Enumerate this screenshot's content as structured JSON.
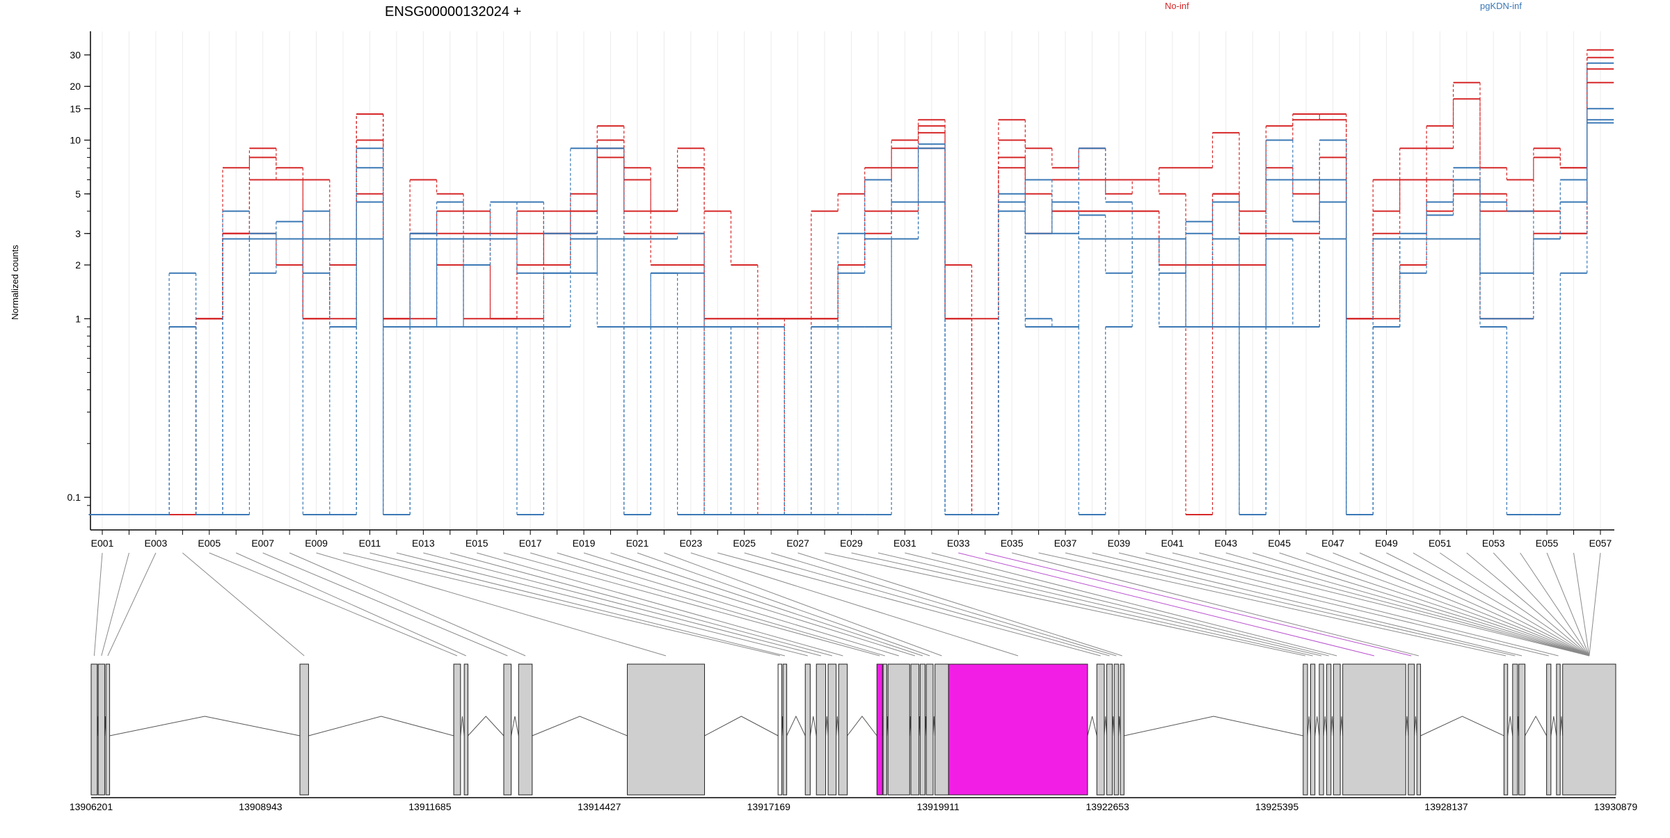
{
  "chart_data": {
    "type": "line",
    "title": "ENSG00000132024 +",
    "ylabel": "Normalized counts",
    "y_scale": "log",
    "ylim": [
      0.08,
      34
    ],
    "y_ticks": [
      0.1,
      1,
      2,
      3,
      5,
      10,
      15,
      20,
      30
    ],
    "y_tick_labels": [
      "0.1",
      "1",
      "2",
      "3",
      "5",
      "10",
      "15",
      "20",
      "30"
    ],
    "grid": "vertical, light",
    "legend": [
      {
        "name": "No-inf",
        "color": "#d62728",
        "position": "top-center"
      },
      {
        "name": "pgKDN-inf",
        "color": "#3a78b5",
        "position": "top-right"
      }
    ],
    "exons": [
      "E001",
      "E002",
      "E003",
      "E004",
      "E005",
      "E006",
      "E007",
      "E008",
      "E009",
      "E010",
      "E011",
      "E012",
      "E013",
      "E014",
      "E015",
      "E016",
      "E017",
      "E018",
      "E019",
      "E020",
      "E021",
      "E022",
      "E023",
      "E024",
      "E025",
      "E026",
      "E027",
      "E028",
      "E029",
      "E030",
      "E031",
      "E032",
      "E033",
      "E034",
      "E035",
      "E036",
      "E037",
      "E038",
      "E039",
      "E040",
      "E041",
      "E042",
      "E043",
      "E044",
      "E045",
      "E046",
      "E047",
      "E048",
      "E049",
      "E050",
      "E051",
      "E052",
      "E053",
      "E054",
      "E055",
      "E056",
      "E057"
    ],
    "x_tick_labels": [
      "E001",
      "E003",
      "E005",
      "E007",
      "E009",
      "E011",
      "E013",
      "E015",
      "E017",
      "E019",
      "E021",
      "E023",
      "E025",
      "E027",
      "E029",
      "E031",
      "E033",
      "E035",
      "E037",
      "E039",
      "E041",
      "E043",
      "E045",
      "E047",
      "E049",
      "E051",
      "E053",
      "E055",
      "E057"
    ],
    "highlighted_exons": [
      "E033",
      "E034"
    ],
    "series": [
      {
        "group": "No-inf",
        "values": [
          0.08,
          0.08,
          0.08,
          0.08,
          1,
          7,
          9,
          7,
          1,
          2,
          14,
          1,
          6,
          5,
          4,
          3,
          3,
          4,
          4,
          12,
          7,
          4,
          9,
          4,
          2,
          1,
          1,
          4,
          5,
          7,
          10,
          13,
          2,
          0.08,
          13,
          9,
          7,
          9,
          6,
          6,
          7,
          7,
          11,
          4,
          12,
          14,
          13,
          1,
          6,
          9,
          12,
          21,
          7,
          6,
          9,
          7,
          32
        ]
      },
      {
        "group": "No-inf",
        "values": [
          0.08,
          0.08,
          0.08,
          0.08,
          1,
          3,
          8,
          6,
          6,
          2,
          10,
          1,
          3,
          3,
          3,
          1,
          4,
          2,
          5,
          9,
          6,
          4,
          7,
          1,
          1,
          1,
          1,
          1,
          2,
          6,
          9,
          12,
          1,
          0.08,
          10,
          6,
          6,
          6,
          5,
          6,
          5,
          2,
          5,
          3,
          10,
          13,
          14,
          1,
          4,
          6,
          9,
          17,
          5,
          4,
          8,
          7,
          29
        ]
      },
      {
        "group": "No-inf",
        "values": [
          0.08,
          0.08,
          0.08,
          0.08,
          1,
          3,
          6,
          6,
          1,
          2,
          14,
          1,
          1,
          4,
          1,
          1,
          2,
          3,
          4,
          10,
          4,
          2,
          2,
          0.08,
          0.08,
          1,
          1,
          1,
          2,
          4,
          7,
          11,
          1,
          0.08,
          8,
          5,
          4,
          4,
          4,
          4,
          2,
          2,
          5,
          3,
          7,
          5,
          8,
          1,
          3,
          6,
          4,
          6,
          4,
          4,
          4,
          3,
          25
        ]
      },
      {
        "group": "No-inf",
        "values": [
          0.08,
          0.08,
          0.08,
          0.08,
          1,
          3,
          3,
          2,
          1,
          1,
          5,
          1,
          3,
          2,
          2,
          1,
          1,
          3,
          3,
          8,
          3,
          3,
          3,
          1,
          1,
          1,
          0.08,
          1,
          2,
          3,
          4,
          9,
          1,
          1,
          7,
          3,
          4,
          4,
          4,
          4,
          2,
          0.08,
          2,
          2,
          3,
          3,
          6,
          1,
          1,
          2,
          6,
          5,
          1,
          1,
          3,
          3,
          21
        ]
      },
      {
        "group": "pgKDN-inf",
        "values": [
          0.08,
          0.08,
          0.08,
          1.8,
          0.08,
          4,
          2.8,
          2.8,
          4,
          2.8,
          9,
          0.08,
          3,
          4.5,
          2.8,
          2.8,
          4.5,
          3,
          3,
          9,
          2.8,
          2.8,
          3,
          0.9,
          0.9,
          0.9,
          0.08,
          0.9,
          3,
          2.8,
          4.5,
          9.5,
          0.08,
          0.08,
          5,
          3,
          4.5,
          2.8,
          2.8,
          2.8,
          1.8,
          3,
          4.5,
          0.08,
          10,
          6,
          10,
          0.08,
          2.8,
          3,
          4.5,
          7,
          1.8,
          1.8,
          2.8,
          6,
          27
        ]
      },
      {
        "group": "pgKDN-inf",
        "values": [
          0.08,
          0.08,
          0.08,
          0.9,
          0.08,
          2.8,
          3,
          2.8,
          1.8,
          0.9,
          7,
          0.9,
          3,
          0.9,
          2,
          4.5,
          1.8,
          1.8,
          9,
          2.8,
          0.9,
          1.8,
          1.8,
          0.08,
          0.9,
          0.9,
          0.08,
          0.9,
          1.8,
          6,
          4.5,
          4.5,
          0.08,
          0.08,
          4.5,
          6,
          3,
          9,
          4.5,
          2.8,
          0.9,
          3.5,
          2.8,
          0.08,
          6,
          3.5,
          6,
          0.08,
          0.9,
          2.8,
          4.5,
          6,
          4.5,
          4,
          2.8,
          4.5,
          15
        ]
      },
      {
        "group": "pgKDN-inf",
        "values": [
          0.08,
          0.08,
          0.08,
          0.9,
          0.08,
          2.8,
          1.8,
          3.5,
          2.8,
          0.08,
          4.5,
          0.08,
          2.8,
          0.9,
          0.9,
          0.9,
          0.9,
          1.8,
          1.8,
          2.8,
          0.08,
          0.9,
          0.9,
          0.08,
          0.9,
          0.9,
          0.08,
          0.08,
          0.9,
          0.9,
          2.8,
          9,
          0.08,
          0.08,
          4,
          1,
          0.9,
          3.8,
          1.8,
          2.8,
          2.8,
          0.9,
          2.8,
          0.9,
          2.8,
          0.9,
          4.5,
          0.08,
          0.9,
          1.8,
          3.8,
          6,
          1,
          1,
          2.8,
          4.5,
          13
        ]
      },
      {
        "group": "pgKDN-inf",
        "values": [
          0.08,
          0.08,
          0.08,
          0.9,
          0.08,
          0.08,
          2.8,
          2.8,
          0.08,
          0.08,
          2.8,
          0.08,
          0.9,
          2.8,
          0.9,
          0.9,
          0.08,
          0.9,
          2.8,
          0.9,
          0.08,
          1.8,
          0.08,
          0.08,
          0.08,
          0.08,
          0.08,
          0.08,
          0.08,
          0.08,
          2.8,
          4.5,
          0.08,
          0.08,
          4.5,
          0.9,
          0.9,
          0.08,
          0.9,
          2.8,
          0.9,
          0.9,
          0.9,
          0.08,
          0.9,
          0.9,
          2.8,
          0.08,
          0.9,
          2.8,
          2.8,
          2.8,
          0.9,
          0.08,
          0.08,
          1.8,
          12.5
        ]
      }
    ],
    "genomic_axis": {
      "range": [
        13906201,
        13930879
      ],
      "ticks": [
        13906201,
        13908943,
        13911685,
        13914427,
        13917169,
        13919911,
        13922653,
        13925395,
        13928137,
        13930879
      ],
      "tick_labels": [
        "13906201",
        "13908943",
        "13911685",
        "13914427",
        "13917169",
        "13919911",
        "13922653",
        "13925395",
        "13928137",
        "13930879"
      ]
    },
    "exon_blocks": [
      {
        "start": 13906201,
        "end": 13906300
      },
      {
        "start": 13906315,
        "end": 13906420
      },
      {
        "start": 13906440,
        "end": 13906500
      },
      {
        "start": 13909580,
        "end": 13909720
      },
      {
        "start": 13912070,
        "end": 13912180
      },
      {
        "start": 13912240,
        "end": 13912300
      },
      {
        "start": 13912880,
        "end": 13913000
      },
      {
        "start": 13913120,
        "end": 13913340
      },
      {
        "start": 13914880,
        "end": 13916130
      },
      {
        "start": 13917320,
        "end": 13917380,
        "white": true
      },
      {
        "start": 13917400,
        "end": 13917460
      },
      {
        "start": 13917760,
        "end": 13917840
      },
      {
        "start": 13917940,
        "end": 13918090
      },
      {
        "start": 13918130,
        "end": 13918260
      },
      {
        "start": 13918300,
        "end": 13918440
      },
      {
        "start": 13918920,
        "end": 13919010,
        "highlight": true
      },
      {
        "start": 13919020,
        "end": 13919080
      },
      {
        "start": 13919100,
        "end": 13919450
      },
      {
        "start": 13919470,
        "end": 13919600
      },
      {
        "start": 13919620,
        "end": 13919700
      },
      {
        "start": 13919720,
        "end": 13919830
      },
      {
        "start": 13919860,
        "end": 13920080
      },
      {
        "start": 13920080,
        "end": 13922330,
        "highlight": true
      },
      {
        "start": 13922480,
        "end": 13922600
      },
      {
        "start": 13922640,
        "end": 13922730
      },
      {
        "start": 13922760,
        "end": 13922830
      },
      {
        "start": 13922860,
        "end": 13922920
      },
      {
        "start": 13925820,
        "end": 13925890
      },
      {
        "start": 13925940,
        "end": 13926010
      },
      {
        "start": 13926080,
        "end": 13926150
      },
      {
        "start": 13926200,
        "end": 13926270
      },
      {
        "start": 13926310,
        "end": 13926420
      },
      {
        "start": 13926460,
        "end": 13927480
      },
      {
        "start": 13927520,
        "end": 13927620
      },
      {
        "start": 13927660,
        "end": 13927720
      },
      {
        "start": 13929070,
        "end": 13929130
      },
      {
        "start": 13929210,
        "end": 13929290
      },
      {
        "start": 13929310,
        "end": 13929410
      },
      {
        "start": 13929760,
        "end": 13929830
      },
      {
        "start": 13929920,
        "end": 13929980
      },
      {
        "start": 13930020,
        "end": 13930879
      }
    ]
  }
}
